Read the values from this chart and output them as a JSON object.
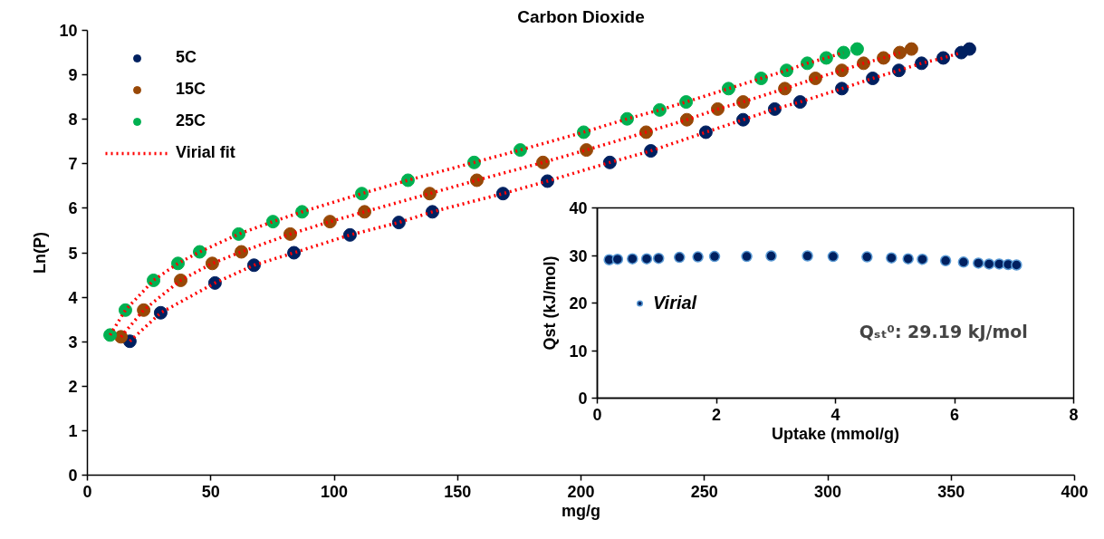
{
  "chart_data": [
    {
      "type": "scatter",
      "title": "Carbon Dioxide",
      "xlabel": "mg/g",
      "ylabel": "Ln(P)",
      "xlim": [
        0,
        400
      ],
      "ylim": [
        0,
        10
      ],
      "xticks": [
        0,
        50,
        100,
        150,
        200,
        250,
        300,
        350,
        400
      ],
      "yticks": [
        0,
        1,
        2,
        3,
        4,
        5,
        6,
        7,
        8,
        9,
        10
      ],
      "grid": false,
      "legend": "top left",
      "marker": "circle",
      "series": [
        {
          "name": "5C",
          "color": "#002060",
          "x": [
            17.2,
            29.7,
            51.7,
            67.5,
            83.7,
            106.4,
            126.2,
            139.8,
            168.4,
            186.4,
            211.7,
            228.3,
            250.6,
            265.7,
            278.5,
            288.8,
            305.7,
            318.2,
            328.8,
            338.0,
            346.8,
            354.1,
            357.4
          ],
          "values": [
            3.01,
            3.65,
            4.32,
            4.72,
            5.0,
            5.4,
            5.68,
            5.92,
            6.33,
            6.61,
            7.03,
            7.29,
            7.71,
            7.99,
            8.23,
            8.39,
            8.69,
            8.92,
            9.1,
            9.26,
            9.38,
            9.5,
            9.58
          ]
        },
        {
          "name": "15C",
          "color": "#984807",
          "x": [
            13.6,
            22.8,
            37.8,
            50.6,
            62.4,
            82.2,
            98.3,
            112.3,
            138.7,
            157.8,
            184.6,
            202.2,
            226.4,
            242.9,
            255.4,
            265.7,
            282.6,
            295.0,
            305.7,
            314.5,
            322.6,
            329.2,
            333.9
          ],
          "values": [
            3.11,
            3.71,
            4.38,
            4.76,
            5.02,
            5.42,
            5.7,
            5.92,
            6.33,
            6.63,
            7.03,
            7.31,
            7.71,
            7.99,
            8.23,
            8.39,
            8.69,
            8.92,
            9.1,
            9.26,
            9.38,
            9.5,
            9.58
          ]
        },
        {
          "name": "25C",
          "color": "#00b050",
          "x": [
            9.2,
            15.4,
            26.8,
            36.7,
            45.5,
            61.3,
            75.2,
            87.0,
            111.2,
            129.9,
            156.7,
            175.4,
            201.1,
            218.7,
            231.9,
            242.6,
            259.8,
            273.0,
            283.3,
            291.7,
            299.4,
            306.4,
            311.9
          ],
          "values": [
            3.15,
            3.71,
            4.38,
            4.76,
            5.02,
            5.42,
            5.7,
            5.92,
            6.33,
            6.63,
            7.03,
            7.31,
            7.71,
            8.01,
            8.21,
            8.39,
            8.69,
            8.92,
            9.1,
            9.26,
            9.38,
            9.5,
            9.58
          ]
        },
        {
          "name": "Virial fit",
          "type": "line",
          "line_style": "dotted",
          "marker": "none",
          "color": "#ff0000",
          "x": [
            17.2,
            29.7,
            51.7,
            67.5,
            83.7,
            106.4,
            126.2,
            139.8,
            168.4,
            186.4,
            211.7,
            228.3,
            250.6,
            265.7,
            278.5,
            288.8,
            305.7,
            318.2,
            328.8,
            338.0,
            346.8,
            354.1
          ],
          "values": [
            3.01,
            3.65,
            4.32,
            4.72,
            5.0,
            5.4,
            5.68,
            5.92,
            6.33,
            6.61,
            7.03,
            7.29,
            7.71,
            7.99,
            8.23,
            8.39,
            8.69,
            8.92,
            9.1,
            9.26,
            9.38,
            9.5
          ]
        },
        {
          "type": "line",
          "line_style": "dotted",
          "marker": "none",
          "color": "#ff0000",
          "x": [
            13.6,
            22.8,
            37.8,
            50.6,
            62.4,
            82.2,
            98.3,
            112.3,
            138.7,
            157.8,
            184.6,
            202.2,
            226.4,
            242.9,
            255.4,
            265.7,
            282.6,
            295.0,
            305.7,
            314.5,
            322.6,
            329.2
          ],
          "values": [
            3.11,
            3.71,
            4.38,
            4.76,
            5.02,
            5.42,
            5.7,
            5.92,
            6.33,
            6.63,
            7.03,
            7.31,
            7.71,
            7.99,
            8.23,
            8.39,
            8.69,
            8.92,
            9.1,
            9.26,
            9.38,
            9.5
          ]
        },
        {
          "type": "line",
          "line_style": "dotted",
          "marker": "none",
          "color": "#ff0000",
          "x": [
            9.2,
            15.4,
            26.8,
            36.7,
            45.5,
            61.3,
            75.2,
            87.0,
            111.2,
            129.9,
            156.7,
            175.4,
            201.1,
            218.7,
            231.9,
            242.6,
            259.8,
            273.0,
            283.3,
            291.7,
            299.4,
            306.4
          ],
          "values": [
            3.15,
            3.71,
            4.38,
            4.76,
            5.02,
            5.42,
            5.7,
            5.92,
            6.33,
            6.63,
            7.03,
            7.31,
            7.71,
            8.01,
            8.21,
            8.39,
            8.69,
            8.92,
            9.1,
            9.26,
            9.38,
            9.5
          ]
        }
      ]
    },
    {
      "type": "scatter",
      "xlabel": "Uptake (mmol/g)",
      "ylabel": "Qst (kJ/mol)",
      "xlim": [
        0,
        8
      ],
      "ylim": [
        0,
        40
      ],
      "xticks": [
        0,
        2,
        4,
        6,
        8
      ],
      "yticks": [
        0,
        10,
        20,
        30,
        40
      ],
      "grid": false,
      "legend": "left",
      "marker": "circle",
      "annotations": [
        "Qₛₜ⁰: 29.19 kJ/mol"
      ],
      "series": [
        {
          "name": "Virial",
          "color": "#002060",
          "x": [
            0.2,
            0.34,
            0.59,
            0.83,
            1.03,
            1.38,
            1.69,
            1.97,
            2.51,
            2.92,
            3.53,
            3.96,
            4.53,
            4.94,
            5.22,
            5.46,
            5.85,
            6.15,
            6.4,
            6.58,
            6.75,
            6.9,
            7.04
          ],
          "values": [
            29.1,
            29.2,
            29.3,
            29.3,
            29.4,
            29.6,
            29.7,
            29.8,
            29.8,
            29.9,
            29.9,
            29.8,
            29.7,
            29.5,
            29.3,
            29.2,
            28.9,
            28.6,
            28.4,
            28.2,
            28.2,
            28.1,
            28.0
          ]
        }
      ]
    }
  ]
}
